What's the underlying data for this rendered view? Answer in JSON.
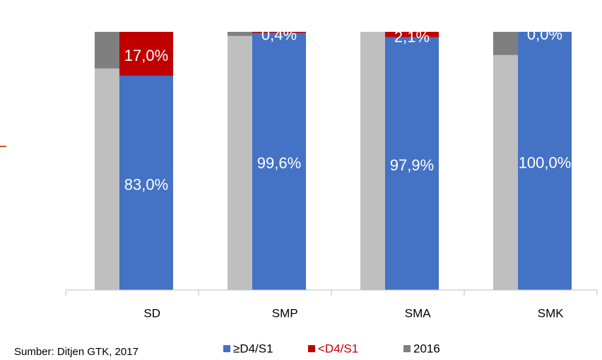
{
  "chart_data": {
    "type": "bar",
    "stacked": true,
    "categories": [
      "SD",
      "SMP",
      "SMA",
      "SMK"
    ],
    "ylim": [
      0,
      100
    ],
    "series": [
      {
        "name": "≥D4/S1",
        "color": "#4472c4",
        "values": [
          83.0,
          99.6,
          97.9,
          100.0
        ],
        "value_labels": [
          "83,0%",
          "99,6%",
          "97,9%",
          "100,0%"
        ]
      },
      {
        "name": "<D4/S1",
        "color": "#c00000",
        "values": [
          17.0,
          0.4,
          2.1,
          0.0
        ],
        "value_labels": [
          "17,0%",
          "0,4%",
          "2,1%",
          "0,0%"
        ]
      }
    ],
    "prior_series": [
      {
        "color": "#bfbfbf",
        "values": [
          85.8,
          98.4,
          100.0,
          91.0
        ]
      },
      {
        "name": "2016",
        "color": "#7f7f7f",
        "values": [
          14.2,
          1.6,
          0.0,
          9.0
        ]
      }
    ],
    "source": "Sumber: Ditjen GTK, 2017"
  }
}
